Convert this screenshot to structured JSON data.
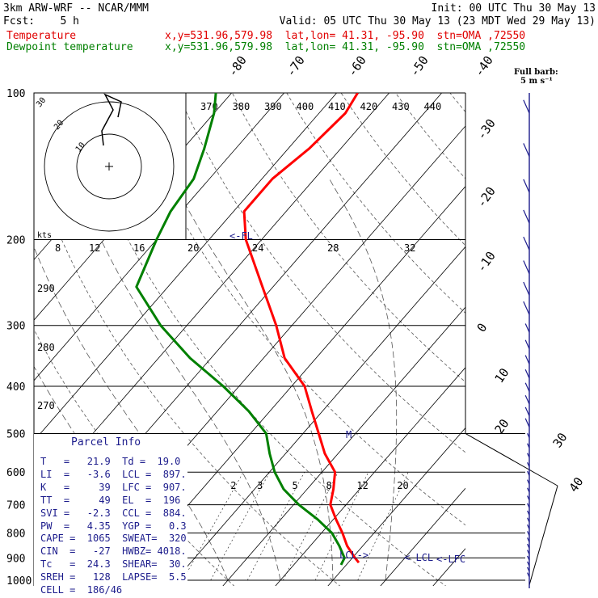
{
  "header": {
    "model": "3km ARW-WRF -- NCAR/MMM",
    "init": "Init: 00 UTC Thu 30 May 13",
    "fcst": "Fcst:    5 h",
    "valid": "Valid: 05 UTC Thu 30 May 13 (23 MDT Wed 29 May 13)",
    "temp_label": "Temperature",
    "temp_info": "x,y=531.96,579.98  lat,lon= 41.31, -95.90  stn=OMA ,72550",
    "dew_label": "Dewpoint temperature",
    "dew_info": "x,y=531.96,579.98  lat,lon= 41.31, -95.90  stn=OMA ,72550",
    "barb_label": "Full barb:",
    "barb_unit": "5 m s⁻¹"
  },
  "colors": {
    "temperature": "#ff0000",
    "dewpoint": "#008000",
    "text_blue": "#1c1c8c",
    "axes": "#000000"
  },
  "chart_data": {
    "type": "line",
    "title": "",
    "xlabel": "",
    "ylabel": "",
    "pressure_axis": {
      "range_hPa": [
        1000,
        100
      ],
      "log_scale": true,
      "ticks": [
        100,
        200,
        300,
        400,
        500,
        600,
        700,
        800,
        900,
        1000
      ]
    },
    "isotherm_labels": [
      "-80",
      "-70",
      "-60",
      "-50",
      "-40",
      "-30",
      "-20",
      "-10",
      "0",
      "10",
      "20",
      "30",
      "40"
    ],
    "theta_labels": [
      "370",
      "380",
      "390",
      "400",
      "410",
      "420",
      "430",
      "440"
    ],
    "theta_left_labels": [
      "290",
      "280",
      "270"
    ],
    "mixing_ratio_labels": [
      "2",
      "3",
      "5",
      "8",
      "12",
      "20"
    ],
    "series": [
      {
        "name": "Temperature",
        "color": "#ff0000",
        "points": [
          [
            920,
            22.0
          ],
          [
            900,
            20.5
          ],
          [
            850,
            17.0
          ],
          [
            800,
            14.0
          ],
          [
            750,
            10.5
          ],
          [
            700,
            7.0
          ],
          [
            650,
            5.0
          ],
          [
            600,
            2.5
          ],
          [
            550,
            -2.5
          ],
          [
            500,
            -7.0
          ],
          [
            450,
            -12.0
          ],
          [
            400,
            -17.5
          ],
          [
            350,
            -26.0
          ],
          [
            300,
            -33.0
          ],
          [
            250,
            -42.0
          ],
          [
            200,
            -53.0
          ],
          [
            175,
            -58.0
          ],
          [
            150,
            -58.0
          ],
          [
            130,
            -56.0
          ],
          [
            110,
            -55.0
          ],
          [
            100,
            -56.0
          ]
        ]
      },
      {
        "name": "Dewpoint temperature",
        "color": "#008000",
        "points": [
          [
            930,
            19.0
          ],
          [
            900,
            18.5
          ],
          [
            850,
            15.5
          ],
          [
            800,
            12.0
          ],
          [
            750,
            7.0
          ],
          [
            700,
            1.0
          ],
          [
            650,
            -4.5
          ],
          [
            600,
            -9.0
          ],
          [
            550,
            -13.0
          ],
          [
            500,
            -17.0
          ],
          [
            450,
            -24.0
          ],
          [
            400,
            -33.0
          ],
          [
            350,
            -44.0
          ],
          [
            300,
            -55.0
          ],
          [
            250,
            -66.0
          ],
          [
            200,
            -70.0
          ],
          [
            175,
            -72.0
          ],
          [
            150,
            -73.0
          ],
          [
            130,
            -76.0
          ],
          [
            110,
            -80.0
          ],
          [
            100,
            -83.0
          ]
        ]
      }
    ],
    "annotations": [
      "<-FL",
      "M",
      "LCL->",
      "< LCL",
      "<-LFC"
    ],
    "hodograph": {
      "rings": [
        "10",
        "20",
        "30"
      ],
      "speed_labels": [
        "8",
        "12",
        "16",
        "20",
        "24",
        "28",
        "32"
      ],
      "unit": "kts"
    }
  },
  "parcel_info": {
    "title": "Parcel Info",
    "rows": [
      "T   =   21.9  Td =  19.0",
      "LI  =   -3.6  LCL =  897.",
      "K   =     39  LFC =  907.",
      "TT  =     49  EL  =  196",
      "SVI =   -2.3  CCL =  884.",
      "PW  =   4.35  YGP =   0.3",
      "CAPE =  1065  SWEAT=  320",
      "CIN  =   -27  HWBZ= 4018.",
      "Tc   =  24.3  SHEAR=  30.",
      "SREH =   128  LAPSE=  5.5",
      "CELL =  186/46"
    ]
  }
}
